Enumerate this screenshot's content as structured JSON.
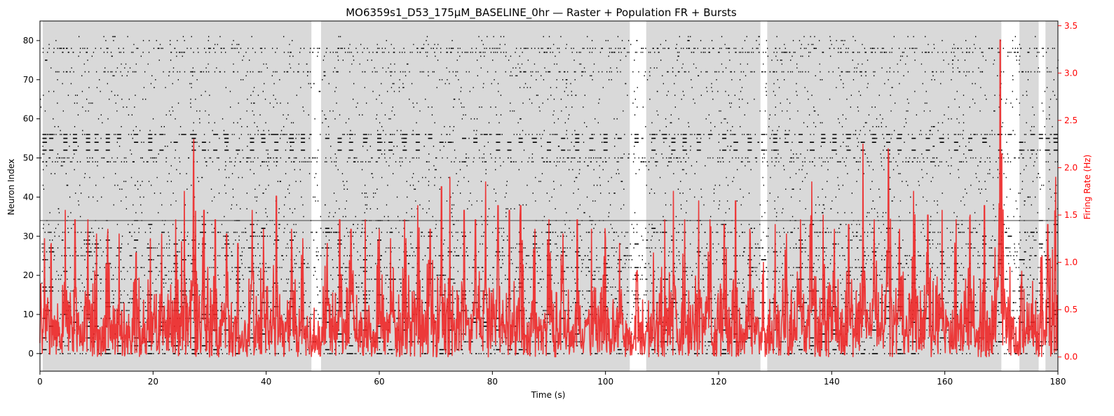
{
  "chart_data": {
    "type": "raster+line",
    "title": "MO6359s1_D53_175µM_BASELINE_0hr — Raster + Population FR + Bursts",
    "xlabel": "Time (s)",
    "ylabel_left": "Neuron Index",
    "ylabel_right": "Firing Rate (Hz)",
    "xlim": [
      0,
      180
    ],
    "ylim_left": [
      -4.5,
      85
    ],
    "ylim_right": [
      -0.15,
      3.55
    ],
    "xticks": [
      0,
      20,
      40,
      60,
      80,
      100,
      120,
      140,
      160,
      180
    ],
    "yticks_left": [
      0,
      10,
      20,
      30,
      40,
      50,
      60,
      70,
      80
    ],
    "yticks_right": [
      0.0,
      0.5,
      1.0,
      1.5,
      2.0,
      2.5,
      3.0,
      3.5
    ],
    "burst_windows": [
      [
        0.5,
        48.0
      ],
      [
        49.7,
        104.3
      ],
      [
        107.2,
        127.4
      ],
      [
        128.6,
        170.0
      ],
      [
        173.2,
        176.6
      ],
      [
        177.8,
        180
      ]
    ],
    "n_neurons": 82,
    "dense_neurons": [
      0,
      3,
      9,
      11,
      13,
      16,
      19,
      22,
      25,
      27,
      31,
      49,
      50,
      56,
      72,
      77,
      78
    ],
    "burst_rows": [
      52,
      54,
      55,
      56
    ],
    "hline_neuron": 34,
    "fr_baseline_hz": 0.3,
    "fr_peaks": [
      {
        "t": 0.8,
        "hz": 1.25
      },
      {
        "t": 2.0,
        "hz": 1.2
      },
      {
        "t": 4.5,
        "hz": 1.55
      },
      {
        "t": 6.2,
        "hz": 1.45
      },
      {
        "t": 8.5,
        "hz": 1.45
      },
      {
        "t": 10.0,
        "hz": 1.3
      },
      {
        "t": 12.0,
        "hz": 1.35
      },
      {
        "t": 14.0,
        "hz": 1.3
      },
      {
        "t": 17.0,
        "hz": 1.1
      },
      {
        "t": 19.5,
        "hz": 1.25
      },
      {
        "t": 21.5,
        "hz": 1.3
      },
      {
        "t": 24.0,
        "hz": 1.45
      },
      {
        "t": 25.5,
        "hz": 1.75
      },
      {
        "t": 27.2,
        "hz": 2.3
      },
      {
        "t": 29.0,
        "hz": 1.55
      },
      {
        "t": 31.0,
        "hz": 1.45
      },
      {
        "t": 33.0,
        "hz": 1.3
      },
      {
        "t": 35.0,
        "hz": 1.2
      },
      {
        "t": 37.5,
        "hz": 1.55
      },
      {
        "t": 39.5,
        "hz": 1.35
      },
      {
        "t": 41.8,
        "hz": 1.7
      },
      {
        "t": 44.5,
        "hz": 1.35
      },
      {
        "t": 46.5,
        "hz": 1.25
      },
      {
        "t": 50.8,
        "hz": 1.2
      },
      {
        "t": 53.0,
        "hz": 1.45
      },
      {
        "t": 55.0,
        "hz": 1.35
      },
      {
        "t": 57.5,
        "hz": 1.45
      },
      {
        "t": 60.0,
        "hz": 1.35
      },
      {
        "t": 62.0,
        "hz": 1.25
      },
      {
        "t": 64.5,
        "hz": 1.45
      },
      {
        "t": 66.8,
        "hz": 1.6
      },
      {
        "t": 69.0,
        "hz": 1.35
      },
      {
        "t": 71.0,
        "hz": 1.8
      },
      {
        "t": 72.5,
        "hz": 1.9
      },
      {
        "t": 75.0,
        "hz": 1.55
      },
      {
        "t": 77.0,
        "hz": 1.45
      },
      {
        "t": 78.8,
        "hz": 1.85
      },
      {
        "t": 81.0,
        "hz": 1.6
      },
      {
        "t": 83.0,
        "hz": 1.55
      },
      {
        "t": 85.0,
        "hz": 1.6
      },
      {
        "t": 87.5,
        "hz": 1.35
      },
      {
        "t": 90.0,
        "hz": 1.45
      },
      {
        "t": 92.5,
        "hz": 1.3
      },
      {
        "t": 95.0,
        "hz": 1.45
      },
      {
        "t": 97.5,
        "hz": 1.35
      },
      {
        "t": 100.0,
        "hz": 1.25
      },
      {
        "t": 102.5,
        "hz": 1.2
      },
      {
        "t": 105.5,
        "hz": 0.8
      },
      {
        "t": 108.5,
        "hz": 1.1
      },
      {
        "t": 110.5,
        "hz": 1.45
      },
      {
        "t": 112.0,
        "hz": 1.75
      },
      {
        "t": 114.0,
        "hz": 1.45
      },
      {
        "t": 116.5,
        "hz": 1.65
      },
      {
        "t": 118.5,
        "hz": 1.45
      },
      {
        "t": 121.0,
        "hz": 1.4
      },
      {
        "t": 123.0,
        "hz": 1.65
      },
      {
        "t": 125.5,
        "hz": 1.35
      },
      {
        "t": 127.9,
        "hz": 1.0
      },
      {
        "t": 130.0,
        "hz": 1.4
      },
      {
        "t": 132.0,
        "hz": 1.3
      },
      {
        "t": 134.5,
        "hz": 1.45
      },
      {
        "t": 136.5,
        "hz": 1.85
      },
      {
        "t": 138.5,
        "hz": 1.5
      },
      {
        "t": 140.5,
        "hz": 1.35
      },
      {
        "t": 143.0,
        "hz": 1.4
      },
      {
        "t": 145.5,
        "hz": 2.25
      },
      {
        "t": 147.5,
        "hz": 1.45
      },
      {
        "t": 150.0,
        "hz": 2.2
      },
      {
        "t": 152.0,
        "hz": 1.35
      },
      {
        "t": 154.5,
        "hz": 1.75
      },
      {
        "t": 157.0,
        "hz": 1.5
      },
      {
        "t": 159.5,
        "hz": 1.55
      },
      {
        "t": 162.0,
        "hz": 1.45
      },
      {
        "t": 164.5,
        "hz": 1.5
      },
      {
        "t": 167.0,
        "hz": 1.6
      },
      {
        "t": 169.8,
        "hz": 3.35
      },
      {
        "t": 171.5,
        "hz": 0.95
      },
      {
        "t": 173.5,
        "hz": 0.75
      },
      {
        "t": 175.5,
        "hz": 0.8
      },
      {
        "t": 177.0,
        "hz": 1.05
      },
      {
        "t": 178.2,
        "hz": 1.4
      },
      {
        "t": 179.6,
        "hz": 1.9
      }
    ],
    "colors": {
      "burst_shade": "#d9d9d9",
      "spike": "#000000",
      "fr_line": "#ee2222",
      "right_axis": "#ff0000",
      "axis": "#000000"
    }
  }
}
